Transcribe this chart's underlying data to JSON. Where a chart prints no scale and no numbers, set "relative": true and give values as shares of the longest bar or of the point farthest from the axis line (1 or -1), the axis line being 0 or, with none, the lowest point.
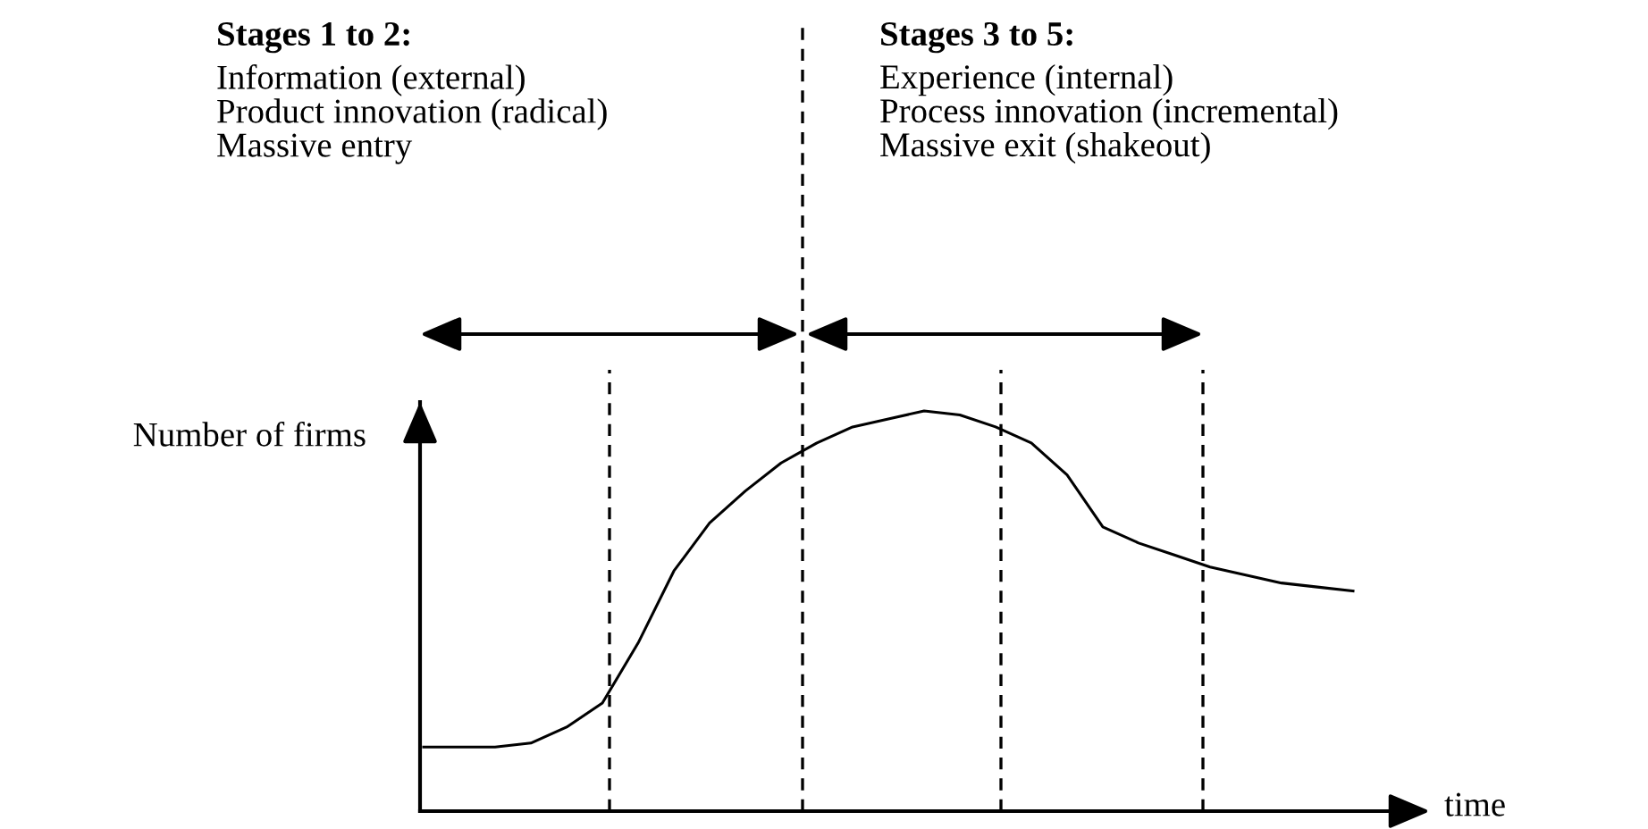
{
  "chart_data": {
    "type": "line",
    "relative": true,
    "xlabel": "time",
    "ylabel": "Number of firms",
    "categories": [
      null,
      null,
      null,
      null,
      null,
      null,
      null,
      null,
      null,
      null,
      null,
      null,
      null,
      null,
      null,
      null,
      null,
      null,
      null,
      null,
      null,
      null,
      null,
      null,
      null,
      null,
      null
    ],
    "series": [
      {
        "color": "#000000",
        "values": [
          0.16,
          0.16,
          0.16,
          0.17,
          0.21,
          0.27,
          0.42,
          0.6,
          0.72,
          0.8,
          0.87,
          0.92,
          0.96,
          0.98,
          1,
          0.99,
          0.96,
          0.92,
          0.84,
          0.71,
          0.67,
          0.64,
          0.61,
          0.59,
          0.57,
          0.56,
          0.55
        ]
      }
    ],
    "annotations": [
      "Stages 1 to 2:",
      "Information (external)\nProduct innovation (radical)\nMassive entry",
      "Stages 3 to 5:",
      "Experience (internal)\nProcess innovation (incremental)\nMassive exit (shakeout)"
    ],
    "legend": false,
    "marker": "none",
    "line_style": "solid"
  }
}
